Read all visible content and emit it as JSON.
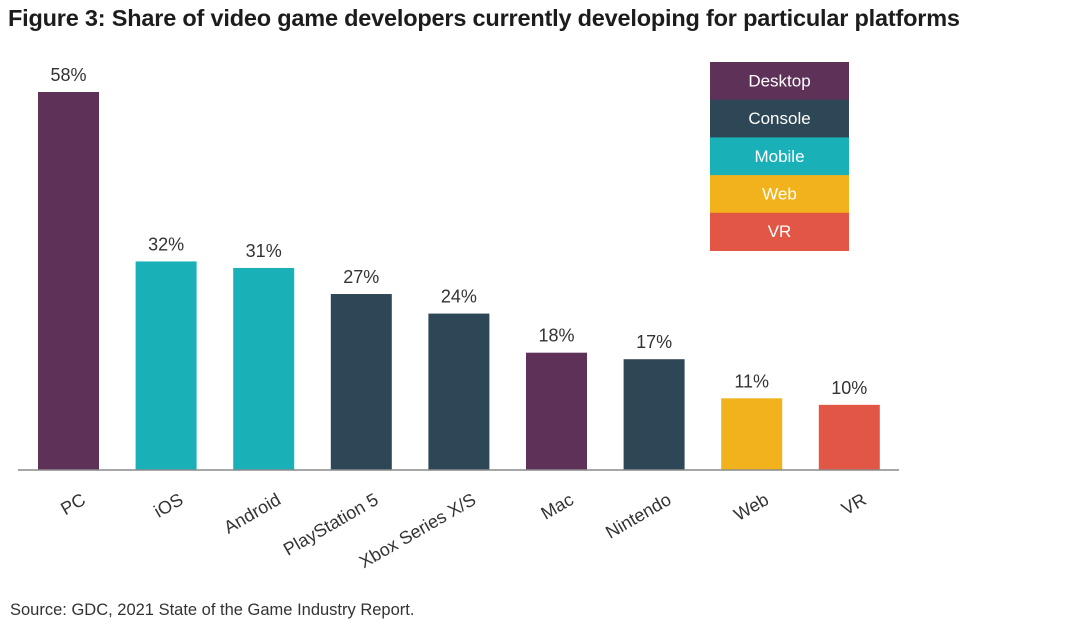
{
  "title": "Figure 3: Share of video game developers currently developing for particular platforms",
  "source": "Source: GDC, 2021 State of the Game Industry Report.",
  "chart_data": {
    "type": "bar",
    "categories": [
      "PC",
      "iOS",
      "Android",
      "PlayStation 5",
      "Xbox Series X/S",
      "Mac",
      "Nintendo",
      "Web",
      "VR"
    ],
    "values": [
      58,
      32,
      31,
      27,
      24,
      18,
      17,
      11,
      10
    ],
    "value_labels": [
      "58%",
      "32%",
      "31%",
      "27%",
      "24%",
      "18%",
      "17%",
      "11%",
      "10%"
    ],
    "groups": [
      "Desktop",
      "Mobile",
      "Mobile",
      "Console",
      "Console",
      "Desktop",
      "Console",
      "Web",
      "VR"
    ],
    "unit": "%",
    "ylim": [
      0,
      58
    ],
    "grid": false,
    "legend_position": "top-right",
    "legend": [
      {
        "name": "Desktop",
        "color": "#5e3159"
      },
      {
        "name": "Console",
        "color": "#2e4756"
      },
      {
        "name": "Mobile",
        "color": "#1ab0b8"
      },
      {
        "name": "Web",
        "color": "#f2b21b"
      },
      {
        "name": "VR",
        "color": "#e25646"
      }
    ]
  }
}
